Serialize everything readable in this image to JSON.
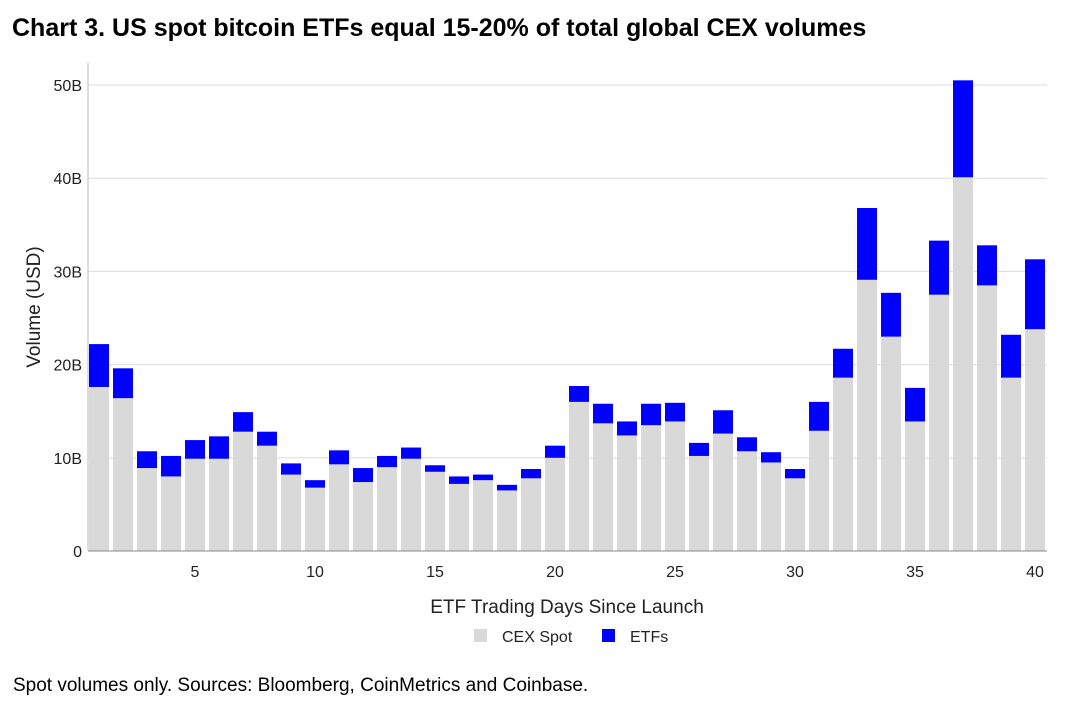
{
  "chart_data": {
    "type": "bar",
    "stacked": true,
    "title": "Chart 3. US spot bitcoin ETFs equal 15-20% of total global CEX volumes",
    "xlabel": "ETF Trading Days Since Launch",
    "ylabel": "Volume (USD)",
    "ylim": [
      0,
      52
    ],
    "yunit": "B",
    "yticks": [
      0,
      10,
      20,
      30,
      40,
      50
    ],
    "ytick_labels": [
      "0",
      "10B",
      "20B",
      "30B",
      "40B",
      "50B"
    ],
    "xticks": [
      5,
      10,
      15,
      20,
      25,
      30,
      35,
      40
    ],
    "xtick_labels": [
      "5",
      "10",
      "15",
      "20",
      "25",
      "30",
      "35",
      "40"
    ],
    "grid": "horizontal",
    "legend": "bottom",
    "x": [
      1,
      2,
      3,
      4,
      5,
      6,
      7,
      8,
      9,
      10,
      11,
      12,
      13,
      14,
      15,
      16,
      17,
      18,
      19,
      20,
      21,
      22,
      23,
      24,
      25,
      26,
      27,
      28,
      29,
      30,
      31,
      32,
      33,
      34,
      35,
      36,
      37,
      38,
      39,
      40
    ],
    "series": [
      {
        "name": "CEX Spot",
        "color": "#d9d9d9",
        "values": [
          17.6,
          16.4,
          8.9,
          8.0,
          9.9,
          9.9,
          12.8,
          11.3,
          8.2,
          6.8,
          9.3,
          7.4,
          9.0,
          9.9,
          8.5,
          7.2,
          7.6,
          6.5,
          7.8,
          10.0,
          16.0,
          13.7,
          12.4,
          13.5,
          13.9,
          10.2,
          12.6,
          10.7,
          9.5,
          7.8,
          12.9,
          18.6,
          29.1,
          23.0,
          13.9,
          27.5,
          40.1,
          28.5,
          18.6,
          23.8
        ]
      },
      {
        "name": "ETFs",
        "color": "#0000ff",
        "values": [
          4.6,
          3.2,
          1.8,
          2.2,
          2.0,
          2.4,
          2.1,
          1.5,
          1.2,
          0.8,
          1.5,
          1.5,
          1.2,
          1.2,
          0.7,
          0.8,
          0.6,
          0.6,
          1.0,
          1.3,
          1.7,
          2.1,
          1.5,
          2.3,
          2.0,
          1.4,
          2.5,
          1.5,
          1.1,
          1.0,
          3.1,
          3.1,
          7.7,
          4.7,
          3.6,
          5.8,
          10.4,
          4.3,
          4.6,
          7.5
        ]
      }
    ]
  },
  "footnote": "Spot volumes only. Sources: Bloomberg, CoinMetrics and Coinbase."
}
